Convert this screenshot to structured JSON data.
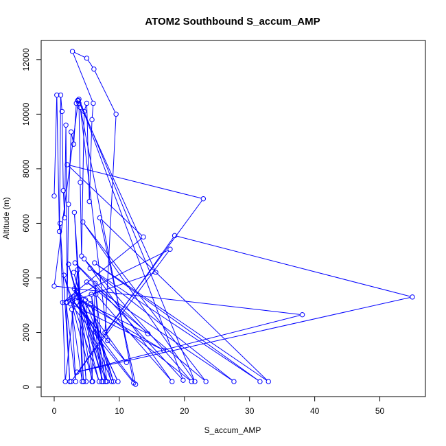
{
  "chart_data": {
    "type": "line",
    "title": "ATOM2 Southbound S_accum_AMP",
    "xlabel": "S_accum_AMP",
    "ylabel": "Altitude (m)",
    "xlim": [
      -2,
      57
    ],
    "ylim": [
      -350,
      12700
    ],
    "xticks": [
      0,
      10,
      20,
      30,
      40,
      50
    ],
    "yticks": [
      0,
      2000,
      4000,
      6000,
      8000,
      10000,
      12000
    ],
    "series_color": "#0000ff",
    "markers": "open-circle",
    "series": [
      {
        "x": [
          0.0,
          0.4,
          0.8,
          1.0,
          1.2,
          1.4,
          1.6,
          1.8,
          2.0,
          2.2,
          2.6,
          3.0,
          3.4,
          3.6,
          3.8,
          4.0,
          4.2,
          4.6,
          5.0,
          5.4,
          5.8,
          6.0,
          2.8,
          5.0,
          6.1,
          9.5,
          7.8,
          22.9,
          2.0,
          13.7,
          1.3,
          17.8,
          2.6,
          18.5,
          55.0,
          3.5,
          38.1,
          0.0,
          3.7,
          15.6,
          2.8,
          8.2,
          4.0,
          12.2,
          2.5,
          16.8,
          3.0,
          14.4,
          3.2,
          19.8,
          3.8,
          21.6,
          4.4,
          23.3,
          5.0,
          27.6,
          5.5,
          31.6,
          6.2,
          32.9,
          7.0,
          12.5,
          2.6,
          11.1,
          3.1,
          9.8,
          3.4,
          21.1,
          4.6,
          18.1,
          6.4,
          8.1,
          3.0,
          7.5,
          2.2,
          6.9,
          1.5,
          5.9,
          4.8,
          9.1,
          5.6,
          8.8,
          4.7,
          7.9,
          5.7,
          7.3,
          6.3,
          5.8,
          3.9,
          4.3,
          2.7,
          3.3,
          1.8,
          2.4,
          0.9,
          1.7,
          3.6,
          4.9,
          3.1,
          4.5
        ],
        "y": [
          7000,
          10700,
          5700,
          10700,
          10100,
          7200,
          6200,
          9600,
          3100,
          6700,
          9350,
          8900,
          10400,
          10500,
          10400,
          7500,
          4800,
          10100,
          10400,
          6800,
          9800,
          10400,
          12300,
          12050,
          11650,
          10000,
          2000,
          6900,
          8150,
          5500,
          3100,
          5050,
          200,
          5550,
          3300,
          550,
          2650,
          3700,
          10500,
          4200,
          3150,
          1700,
          10250,
          150,
          3050,
          1350,
          3300,
          1950,
          4550,
          250,
          10550,
          200,
          6050,
          200,
          3850,
          200,
          4350,
          200,
          4550,
          200,
          6200,
          100,
          3250,
          900,
          3600,
          200,
          3500,
          200,
          4700,
          200,
          3400,
          200,
          4200,
          200,
          4500,
          200,
          4100,
          200,
          3200,
          200,
          3050,
          200,
          2700,
          200,
          3400,
          200,
          3800,
          200,
          3000,
          200,
          2850,
          200,
          3100,
          200,
          6000,
          200,
          4300,
          200,
          6400,
          200
        ]
      }
    ]
  }
}
